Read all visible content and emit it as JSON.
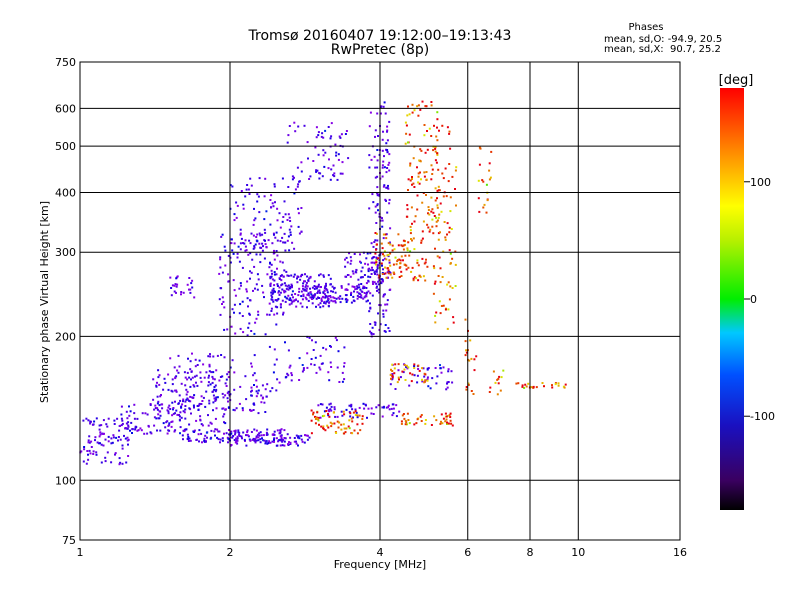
{
  "chart_data": {
    "type": "scatter",
    "title": "Tromsø 20160407 19:12:00–19:13:43",
    "subtitle": "RwPretec (8p)",
    "xlabel": "Frequency [MHz]",
    "ylabel": "Stationary phase Virtual Height [km]",
    "x_scale": "log",
    "y_scale": "log",
    "xlim": [
      1,
      16
    ],
    "ylim": [
      75,
      750
    ],
    "x_ticks": [
      1,
      2,
      4,
      6,
      8,
      10,
      16
    ],
    "x_tick_labels": [
      "1",
      "2",
      "4",
      "6",
      "8",
      "10",
      "16"
    ],
    "y_ticks": [
      75,
      100,
      200,
      300,
      400,
      500,
      600,
      750
    ],
    "y_tick_labels": [
      "75",
      "100",
      "200",
      "300",
      "400",
      "500",
      "600",
      "750"
    ],
    "grid": true,
    "phase_box": {
      "heading": "Phases",
      "line_o": "mean, sd,O: -94.9, 20.5",
      "line_x": "mean, sd,X:  90.7, 25.2"
    },
    "colorbar": {
      "label": "[deg]",
      "ticks": [
        100,
        0,
        -100
      ],
      "tick_labels": [
        "100",
        "0",
        "-100"
      ],
      "range": [
        -180,
        180
      ]
    },
    "series": [
      {
        "mode": "O",
        "phase_mean": -94.9,
        "phase_sd": 20.5,
        "bands": [
          {
            "x": [
              1.0,
              1.25
            ],
            "y": [
              108,
              120
            ],
            "n": 40
          },
          {
            "x": [
              1.0,
              1.3
            ],
            "y": [
              120,
              135
            ],
            "n": 60
          },
          {
            "x": [
              1.2,
              1.7
            ],
            "y": [
              125,
              145
            ],
            "n": 90
          },
          {
            "x": [
              1.4,
              2.0
            ],
            "y": [
              130,
              170
            ],
            "n": 120
          },
          {
            "x": [
              1.5,
              2.3
            ],
            "y": [
              140,
              185
            ],
            "n": 110
          },
          {
            "x": [
              1.6,
              2.6
            ],
            "y": [
              120,
              128
            ],
            "n": 120
          },
          {
            "x": [
              2.0,
              2.9
            ],
            "y": [
              118,
              125
            ],
            "n": 80
          },
          {
            "x": [
              1.5,
              1.7
            ],
            "y": [
              240,
              270
            ],
            "n": 25
          },
          {
            "x": [
              1.9,
              2.6
            ],
            "y": [
              200,
              330
            ],
            "n": 160
          },
          {
            "x": [
              2.0,
              2.8
            ],
            "y": [
              300,
              430
            ],
            "n": 110
          },
          {
            "x": [
              2.4,
              3.2
            ],
            "y": [
              230,
              270
            ],
            "n": 160
          },
          {
            "x": [
              2.6,
              3.5
            ],
            "y": [
              420,
              560
            ],
            "n": 70
          },
          {
            "x": [
              2.8,
              3.8
            ],
            "y": [
              235,
              255
            ],
            "n": 120
          },
          {
            "x": [
              3.4,
              4.1
            ],
            "y": [
              250,
              300
            ],
            "n": 80
          },
          {
            "x": [
              3.8,
              4.2
            ],
            "y": [
              200,
              620
            ],
            "n": 170
          },
          {
            "x": [
              2.4,
              3.4
            ],
            "y": [
              160,
              200
            ],
            "n": 60
          },
          {
            "x": [
              3.0,
              4.4
            ],
            "y": [
              135,
              145
            ],
            "n": 60
          },
          {
            "x": [
              4.2,
              5.6
            ],
            "y": [
              155,
              175
            ],
            "n": 50
          },
          {
            "x": [
              2.2,
              2.5
            ],
            "y": [
              135,
              160
            ],
            "n": 25
          }
        ]
      },
      {
        "mode": "X",
        "phase_mean": 90.7,
        "phase_sd": 25.2,
        "bands": [
          {
            "x": [
              2.9,
              3.7
            ],
            "y": [
              125,
              140
            ],
            "n": 70
          },
          {
            "x": [
              4.4,
              5.6
            ],
            "y": [
              130,
              138
            ],
            "n": 45
          },
          {
            "x": [
              3.9,
              5.0
            ],
            "y": [
              260,
              330
            ],
            "n": 110
          },
          {
            "x": [
              4.5,
              5.3
            ],
            "y": [
              330,
              620
            ],
            "n": 110
          },
          {
            "x": [
              5.1,
              5.7
            ],
            "y": [
              200,
              560
            ],
            "n": 90
          },
          {
            "x": [
              4.2,
              5.0
            ],
            "y": [
              160,
              175
            ],
            "n": 35
          },
          {
            "x": [
              5.9,
              6.3
            ],
            "y": [
              150,
              220
            ],
            "n": 20
          },
          {
            "x": [
              6.3,
              6.7
            ],
            "y": [
              350,
              500
            ],
            "n": 20
          },
          {
            "x": [
              6.6,
              7.1
            ],
            "y": [
              150,
              170
            ],
            "n": 12
          },
          {
            "x": [
              7.5,
              9.5
            ],
            "y": [
              156,
              160
            ],
            "n": 25
          }
        ]
      }
    ]
  }
}
